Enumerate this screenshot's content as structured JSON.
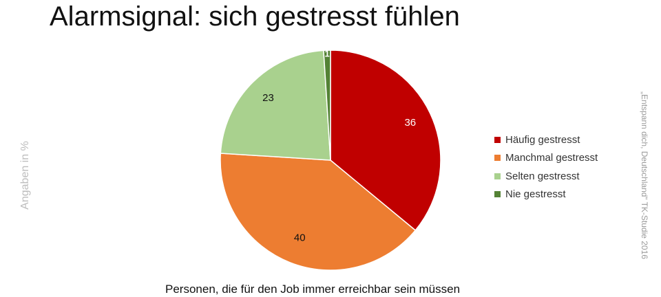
{
  "title": "Alarmsignal: sich gestresst fühlen",
  "side_label_left": "Angaben in %",
  "side_label_right": "„Entspann dich, Deutschland“ TK-Studie 2016",
  "caption": "Personen, die für den Job immer erreichbar sein müssen",
  "chart_data": {
    "type": "pie",
    "categories": [
      "Häufig gestresst",
      "Manchmal gestresst",
      "Selten gestresst",
      "Nie gestresst"
    ],
    "values": [
      36,
      40,
      23,
      1
    ],
    "colors": [
      "#c00000",
      "#ed7d31",
      "#a9d18e",
      "#548235"
    ],
    "label_colors": [
      "#ffffff",
      "#111111",
      "#111111",
      "#ffffff"
    ],
    "start": "12 o'clock",
    "direction": "clockwise",
    "legend_position": "right"
  }
}
